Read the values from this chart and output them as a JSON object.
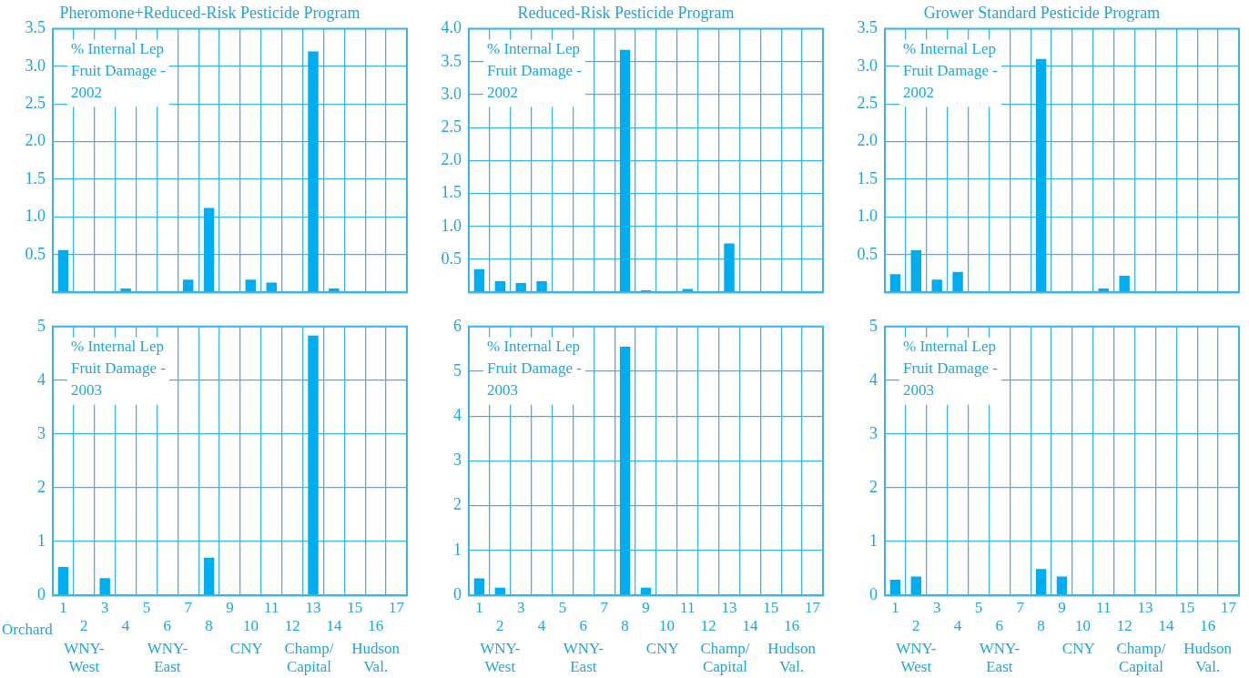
{
  "chart_data": [
    {
      "type": "bar",
      "title": "Pheromone+Reduced-Risk Pesticide Program",
      "categories": [
        "1",
        "2",
        "3",
        "4",
        "5",
        "6",
        "7",
        "8",
        "9",
        "10",
        "11",
        "12",
        "13",
        "14",
        "15",
        "16",
        "17"
      ],
      "values": [
        0.56,
        0,
        0,
        0.05,
        0,
        0,
        0.17,
        1.12,
        0,
        0.17,
        0.13,
        0,
        3.2,
        0.05,
        0,
        0,
        0
      ],
      "color": "#00aeef",
      "ylim": [
        0,
        3.5
      ],
      "yticks": [
        {
          "value": 0,
          "label": null
        },
        0.5,
        {
          "value": 1,
          "label": "1.0"
        },
        1.5,
        {
          "value": 2,
          "label": "2.0"
        },
        2.5,
        {
          "value": 3,
          "label": "3.0"
        },
        3.5
      ],
      "grid": true,
      "tick_labels": "y",
      "annotations": [
        "% Internal Lep Fruit Damage - 2002"
      ]
    },
    {
      "type": "bar",
      "title": "Reduced-Risk Pesticide Program",
      "categories": [
        "1",
        "2",
        "3",
        "4",
        "5",
        "6",
        "7",
        "8",
        "9",
        "10",
        "11",
        "12",
        "13",
        "14",
        "15",
        "16",
        "17"
      ],
      "values": [
        0.35,
        0.17,
        0.14,
        0.17,
        0,
        0,
        0,
        3.68,
        0.03,
        0,
        0.05,
        0,
        0.74,
        0,
        0,
        0,
        0
      ],
      "color": "#00aeef",
      "ylim": [
        0,
        4
      ],
      "yticks": [
        {
          "value": 0,
          "label": null
        },
        0.5,
        {
          "value": 1,
          "label": "1.0"
        },
        1.5,
        {
          "value": 2,
          "label": "2.0"
        },
        2.5,
        {
          "value": 3,
          "label": "3.0"
        },
        3.5,
        {
          "value": 4,
          "label": "4.0"
        }
      ],
      "grid": true,
      "tick_labels": "y",
      "annotations": [
        "% Internal Lep Fruit Damage - 2002"
      ]
    },
    {
      "type": "bar",
      "title": "Grower Standard Pesticide Program",
      "categories": [
        "1",
        "2",
        "3",
        "4",
        "5",
        "6",
        "7",
        "8",
        "9",
        "10",
        "11",
        "12",
        "13",
        "14",
        "15",
        "16",
        "17"
      ],
      "values": [
        0.24,
        0.56,
        0.17,
        0.27,
        0,
        0,
        0,
        3.1,
        0,
        0,
        0.05,
        0.22,
        0,
        0,
        0,
        0,
        0
      ],
      "color": "#00aeef",
      "ylim": [
        0,
        3.5
      ],
      "yticks": [
        {
          "value": 0,
          "label": null
        },
        0.5,
        {
          "value": 1,
          "label": "1.0"
        },
        1.5,
        {
          "value": 2,
          "label": "2.0"
        },
        2.5,
        {
          "value": 3,
          "label": "3.0"
        },
        3.5
      ],
      "grid": true,
      "tick_labels": "y",
      "annotations": [
        "% Internal Lep Fruit Damage - 2002"
      ]
    },
    {
      "type": "bar",
      "xlabel": "Orchard",
      "categories": [
        "1",
        "2",
        "3",
        "4",
        "5",
        "6",
        "7",
        "8",
        "9",
        "10",
        "11",
        "12",
        "13",
        "14",
        "15",
        "16",
        "17"
      ],
      "values": [
        0.53,
        0,
        0.32,
        0,
        0,
        0,
        0,
        0.7,
        0,
        0,
        0,
        0,
        4.83,
        0,
        0,
        0,
        0
      ],
      "color": "#00aeef",
      "ylim": [
        0,
        5
      ],
      "yticks": [
        0,
        1,
        2,
        3,
        4,
        5
      ],
      "grid": true,
      "annotations": [
        "% Internal Lep Fruit Damage - 2003",
        "WNY-West",
        "WNY-East",
        "CNY",
        "Champ/Capital",
        "Hudson Val."
      ]
    },
    {
      "type": "bar",
      "categories": [
        "1",
        "2",
        "3",
        "4",
        "5",
        "6",
        "7",
        "8",
        "9",
        "10",
        "11",
        "12",
        "13",
        "14",
        "15",
        "16",
        "17"
      ],
      "values": [
        0.38,
        0.17,
        0,
        0,
        0,
        0,
        0,
        5.55,
        0.17,
        0,
        0,
        0,
        0,
        0,
        0,
        0,
        0
      ],
      "color": "#00aeef",
      "ylim": [
        0,
        6
      ],
      "yticks": [
        0,
        1,
        2,
        3,
        4,
        5,
        6
      ],
      "grid": true,
      "annotations": [
        "% Internal Lep Fruit Damage - 2003",
        "WNY-West",
        "WNY-East",
        "CNY",
        "Champ/Capital",
        "Hudson Val."
      ]
    },
    {
      "type": "bar",
      "categories": [
        "1",
        "2",
        "3",
        "4",
        "5",
        "6",
        "7",
        "8",
        "9",
        "10",
        "11",
        "12",
        "13",
        "14",
        "15",
        "16",
        "17"
      ],
      "values": [
        0.29,
        0.35,
        0,
        0,
        0,
        0,
        0,
        0.49,
        0.35,
        0,
        0,
        0,
        0,
        0,
        0,
        0,
        0
      ],
      "color": "#00aeef",
      "ylim": [
        0,
        5
      ],
      "yticks": [
        0,
        1,
        2,
        3,
        4,
        5
      ],
      "grid": true,
      "annotations": [
        "% Internal Lep Fruit Damage - 2003",
        "WNY-West",
        "WNY-East",
        "CNY",
        "Champ/Capital",
        "Hudson Val."
      ]
    }
  ]
}
